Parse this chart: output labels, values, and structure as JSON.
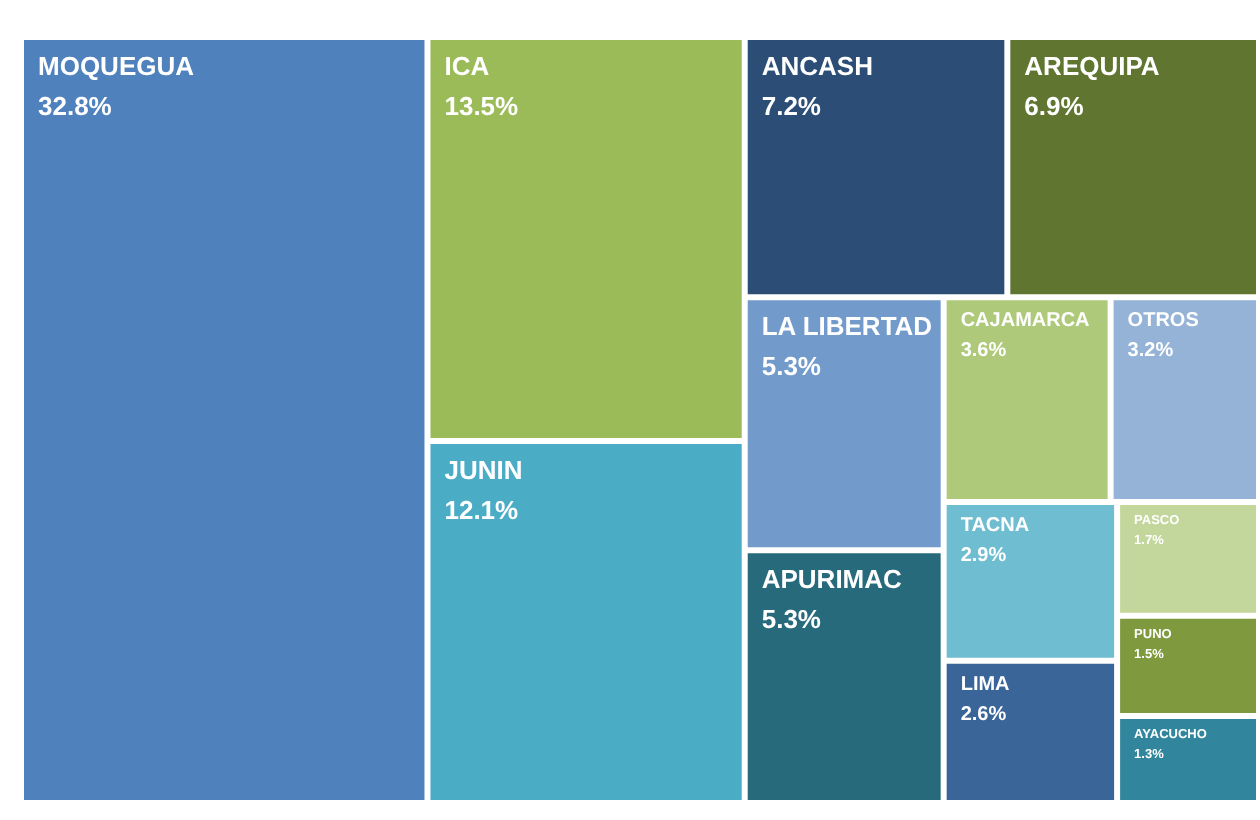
{
  "chart_data": {
    "type": "other",
    "categories": [
      "MOQUEGUA",
      "ICA",
      "JUNIN",
      "ANCASH",
      "AREQUIPA",
      "APURIMAC",
      "LA LIBERTAD",
      "CAJAMARCA",
      "TACNA",
      "LIMA",
      "PASCO",
      "PUNO",
      "AYACUCHO",
      "OTROS"
    ],
    "values": [
      32.8,
      13.5,
      12.1,
      7.2,
      6.9,
      5.3,
      5.3,
      3.6,
      2.9,
      2.6,
      1.7,
      1.5,
      1.3,
      3.2
    ],
    "value_labels": [
      "32.8%",
      "13.5%",
      "12.1%",
      "7.2%",
      "6.9%",
      "5.3%",
      "5.3%",
      "3.6%",
      "2.9%",
      "2.6%",
      "1.7%",
      "1.5%",
      "1.3%",
      "3.2%"
    ],
    "colors": [
      "#4f81bd",
      "#9bbb59",
      "#4bacc6",
      "#2c4d75",
      "#5f7530",
      "#276a7c",
      "#729aca",
      "#afc97a",
      "#6fbdd1",
      "#3a6599",
      "#c3d69b",
      "#7f9a3e",
      "#31859c",
      "#95b3d7"
    ]
  }
}
